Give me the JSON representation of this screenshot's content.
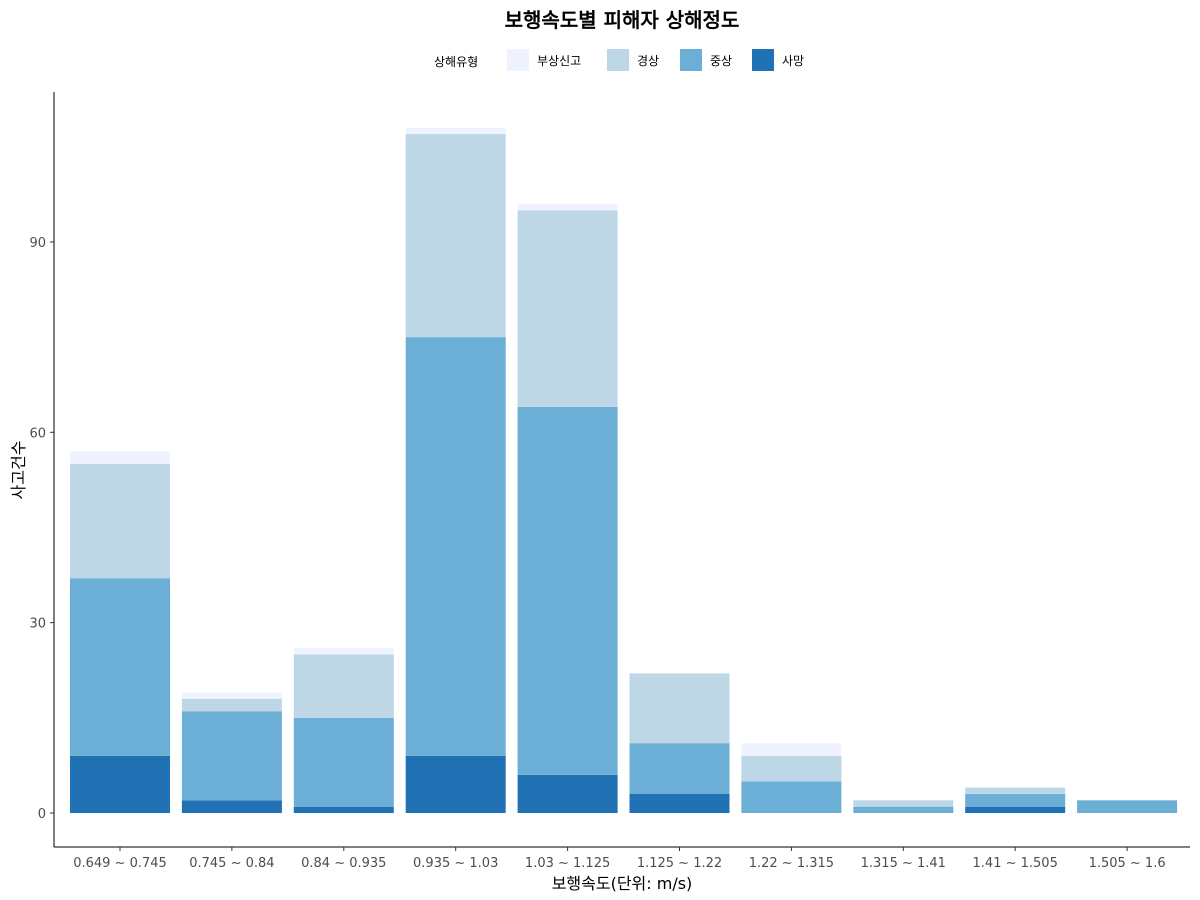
{
  "chart_data": {
    "type": "bar",
    "stacked": true,
    "title": "보행속도별 피해자 상해정도",
    "xlabel": "보행속도(단위: m/s)",
    "ylabel": "사고건수",
    "ylim": [
      -5,
      108
    ],
    "yticks": [
      0,
      30,
      60,
      90
    ],
    "ytick_labels": [
      "0",
      "30",
      "60",
      "90"
    ],
    "legend_title": "상해유형",
    "legend_position": "top",
    "categories": [
      "0.649 ~ 0.745",
      "0.745 ~ 0.84",
      "0.84 ~ 0.935",
      "0.935 ~ 1.03",
      "1.03 ~ 1.125",
      "1.125 ~ 1.22",
      "1.22 ~ 1.315",
      "1.315 ~ 1.41",
      "1.41 ~ 1.505",
      "1.505 ~ 1.6"
    ],
    "series": [
      {
        "name": "사망",
        "color": "#2171b5",
        "values": [
          9,
          2,
          1,
          9,
          6,
          3,
          0,
          0,
          1,
          0
        ]
      },
      {
        "name": "중상",
        "color": "#6baed6",
        "values": [
          28,
          14,
          14,
          66,
          58,
          8,
          5,
          1,
          2,
          2
        ]
      },
      {
        "name": "경상",
        "color": "#bdd7e7",
        "values": [
          18,
          2,
          10,
          32,
          31,
          11,
          4,
          1,
          1,
          0
        ]
      },
      {
        "name": "부상신고",
        "color": "#eff3ff",
        "values": [
          2,
          1,
          1,
          1,
          1,
          0,
          2,
          0,
          0,
          0
        ]
      }
    ],
    "legend_order": [
      "부상신고",
      "경상",
      "중상",
      "사망"
    ]
  }
}
